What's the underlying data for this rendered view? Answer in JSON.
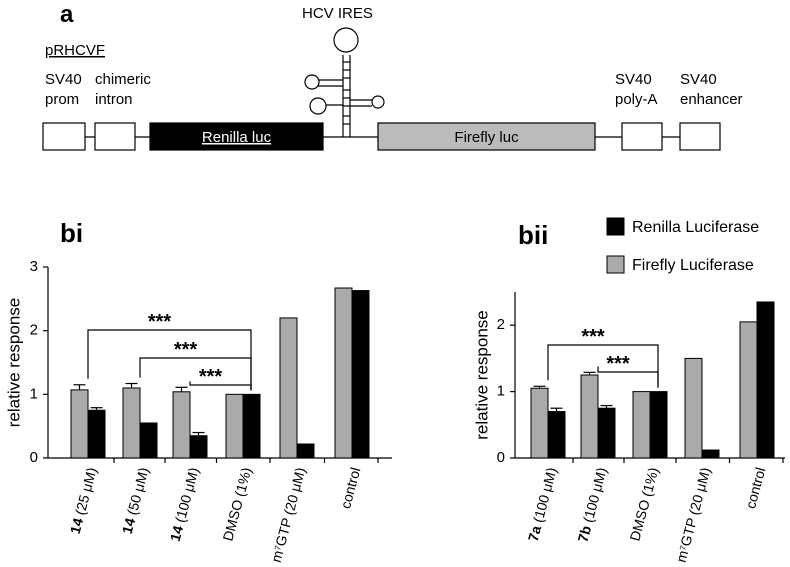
{
  "diagram": {
    "label": "a",
    "ires": "HCV IRES",
    "plasmid": "pRHCVF",
    "elements": [
      "SV40\nprom",
      "chimeric\nintron",
      "Renilla luc",
      "Firefly luc",
      "SV40\npoly-A",
      "SV40\nenhancer"
    ]
  },
  "chart_data": [
    {
      "type": "bar",
      "title": "bi",
      "y_label": "relative response",
      "categories": [
        "14 (25 μM)",
        "14 (50 μM)",
        "14 (100 μM)",
        "DMSO (1%)",
        "m⁷GTP (20 μM)",
        "control"
      ],
      "series": [
        {
          "color": "#aaaaaa",
          "values": [
            1.07,
            1.1,
            1.04,
            1.0,
            2.2,
            2.67
          ],
          "errors": [
            0.08,
            0.07,
            0.07,
            null,
            null,
            null
          ]
        },
        {
          "color": "#000000",
          "values": [
            0.75,
            0.55,
            0.35,
            1.0,
            0.22,
            2.63
          ],
          "errors": [
            0.04,
            null,
            0.05,
            null,
            null,
            null
          ]
        }
      ],
      "annotations": [
        "***",
        "***",
        "***"
      ],
      "ylim": [
        0,
        3
      ],
      "yticks": [
        0,
        1,
        2,
        3
      ]
    },
    {
      "type": "bar",
      "title": "bii",
      "y_label": "relative response",
      "categories": [
        "7a (100 μM)",
        "7b (100 μM)",
        "DMSO (1%)",
        "m⁷GTP (20 μM)",
        "control"
      ],
      "series": [
        {
          "name": "Renilla Luciferase",
          "color": "#000000",
          "values": [
            0.7,
            0.75,
            1.0,
            0.12,
            2.35
          ],
          "errors": [
            0.05,
            0.04,
            null,
            null,
            null
          ]
        },
        {
          "name": "Firefly Luciferase",
          "color": "#aaaaaa",
          "values": [
            1.05,
            1.25,
            1.0,
            1.5,
            2.05
          ],
          "errors": [
            0.03,
            0.04,
            null,
            null,
            null
          ]
        }
      ],
      "annotations": [
        "***",
        "***"
      ],
      "ylim": [
        0,
        2.5
      ],
      "yticks": [
        0,
        1,
        2
      ]
    }
  ]
}
